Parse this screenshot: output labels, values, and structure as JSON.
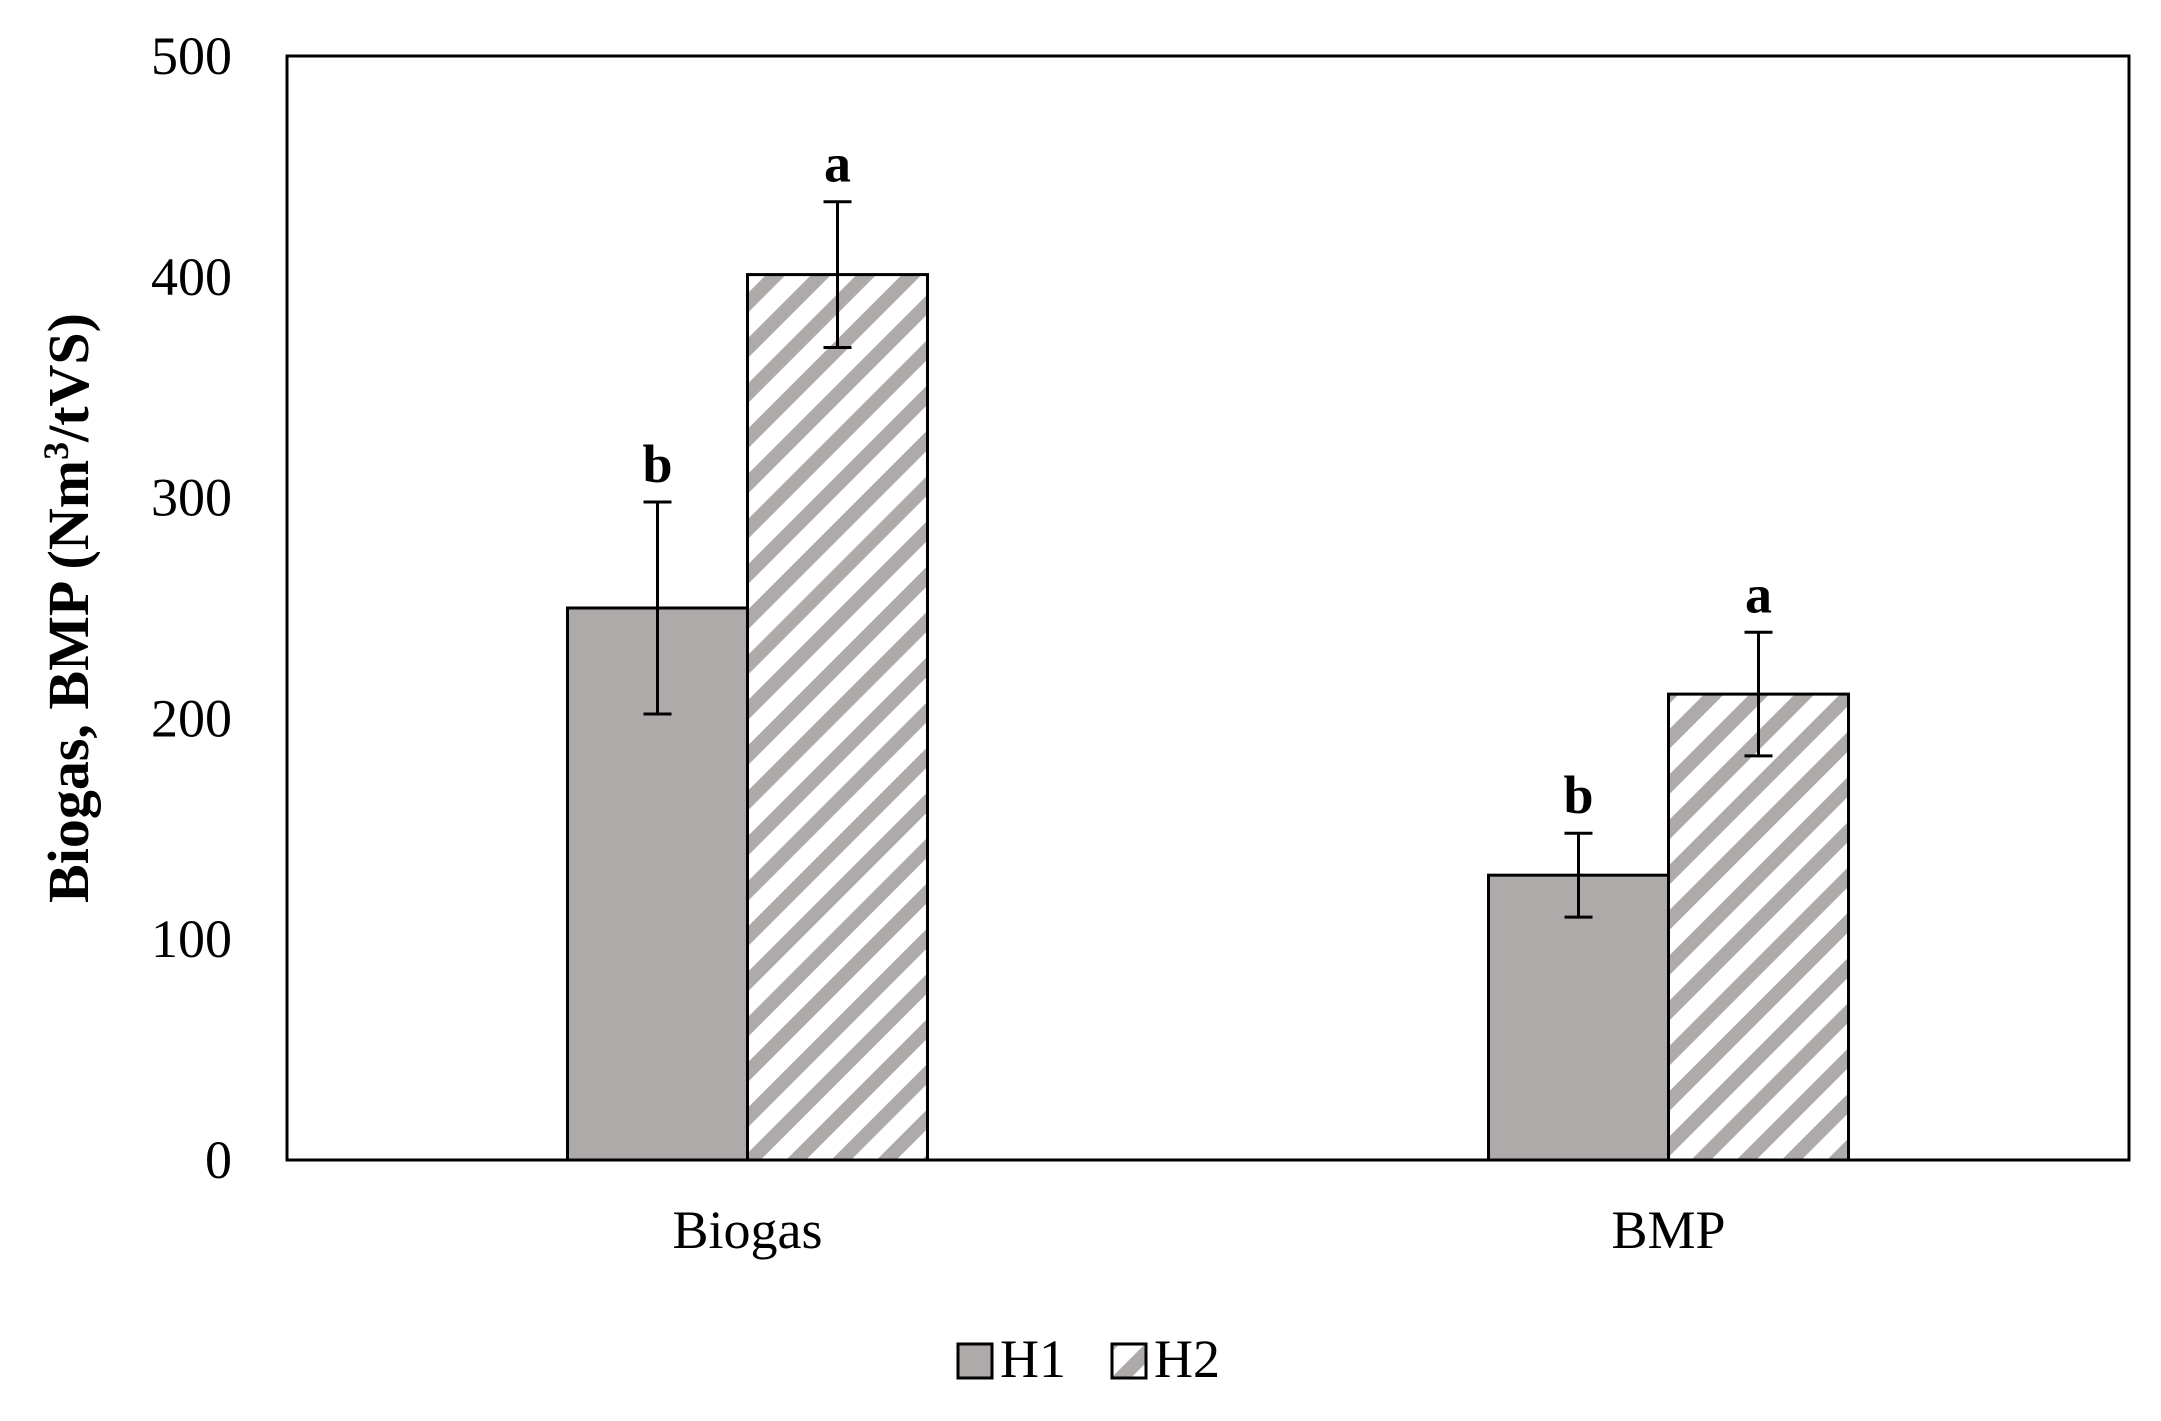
{
  "chart_data": {
    "type": "bar",
    "categories": [
      "Biogas",
      "BMP"
    ],
    "series": [
      {
        "name": "H1",
        "values": [
          250,
          129
        ],
        "errors": [
          48,
          19
        ],
        "significance": [
          "b",
          "b"
        ],
        "fill": "#aeaaaa",
        "pattern": "solid"
      },
      {
        "name": "H2",
        "values": [
          401,
          211
        ],
        "errors": [
          33,
          28
        ],
        "significance": [
          "a",
          "a"
        ],
        "fill": "#ffffff",
        "pattern": "diagonal-stripes",
        "stripe_color": "#aeaaaa"
      }
    ],
    "ylabel_parts": {
      "before": "Biogas, BMP (Nm",
      "sup": "3",
      "after": "/tVS)"
    },
    "xlabel": "",
    "ylim": [
      0,
      500
    ],
    "yticks": [
      "0",
      "100",
      "200",
      "300",
      "400",
      "500"
    ],
    "grid": false,
    "legend_position": "bottom-center"
  }
}
